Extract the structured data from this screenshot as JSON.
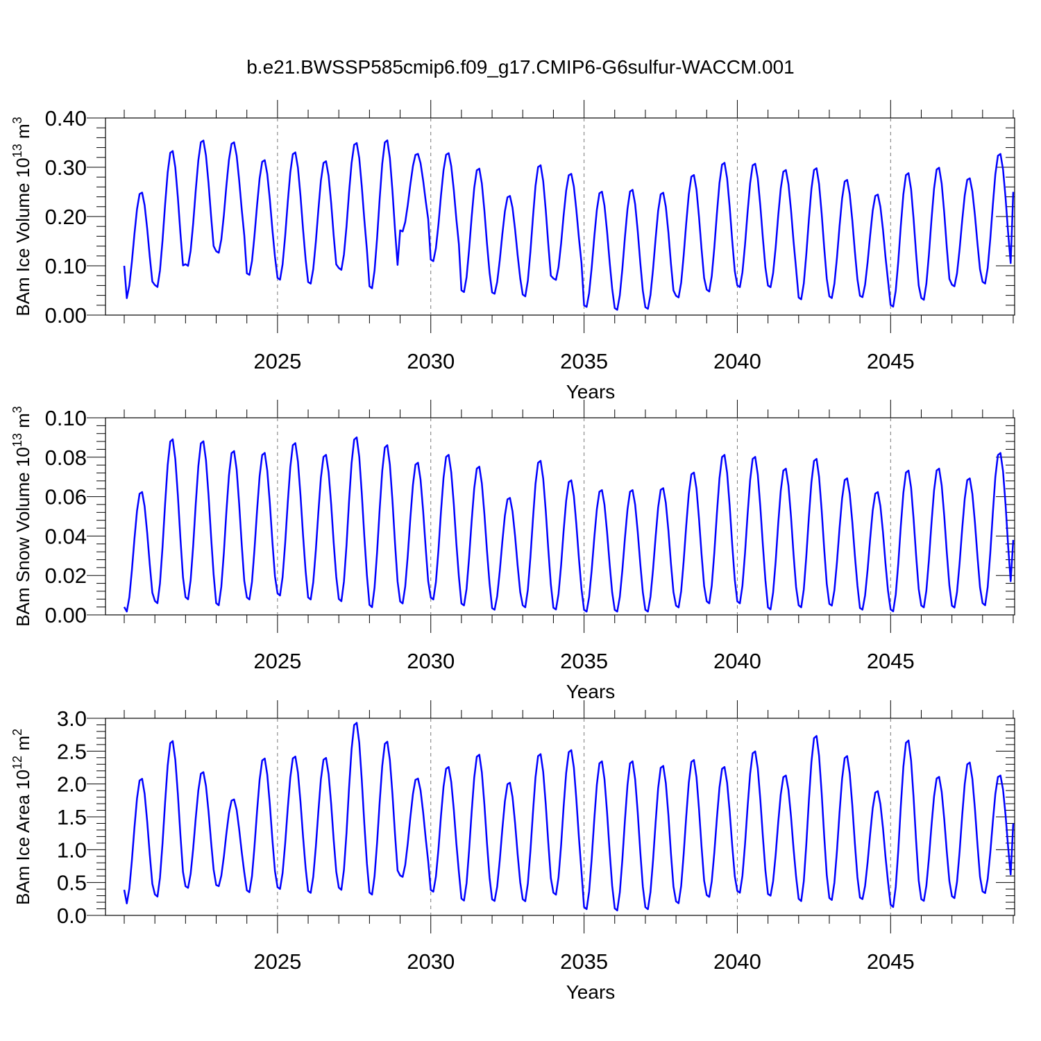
{
  "title": "b.e21.BWSSP585cmip6.f09_g17.CMIP6-G6sulfur-WACCM.001",
  "chart_data": [
    {
      "type": "line",
      "ylabel_main": "BAm Ice Volume 10",
      "ylabel_exp": "13",
      "ylabel_unit": " m",
      "ylabel_unit_exp": "3",
      "xlabel": "Years",
      "xlim": [
        2020.0,
        2049.0
      ],
      "ylim": [
        0.0,
        0.4
      ],
      "xticks": [
        2025,
        2030,
        2035,
        2040,
        2045
      ],
      "xtick_labels": [
        "2025",
        "2030",
        "2035",
        "2040",
        "2045"
      ],
      "yticks": [
        0.0,
        0.1,
        0.2,
        0.3,
        0.4
      ],
      "ytick_labels": [
        "0.00",
        "0.10",
        "0.20",
        "0.30",
        "0.40"
      ],
      "grid": "dashed vertical at x ticks",
      "color": "#0000ff",
      "series": [
        {
          "name": "BAm Ice Volume",
          "start": 2020.0,
          "step_months": 1,
          "annual_max": [
            0.251,
            0.336,
            0.357,
            0.353,
            0.317,
            0.333,
            0.315,
            0.352,
            0.358,
            0.329,
            0.331,
            0.3,
            0.244,
            0.307,
            0.289,
            0.253,
            0.257,
            0.251,
            0.287,
            0.312,
            0.31,
            0.297,
            0.301,
            0.277,
            0.247,
            0.291,
            0.302,
            0.28,
            0.33
          ],
          "annual_min": [
            0.032,
            0.054,
            0.097,
            0.124,
            0.079,
            0.069,
            0.061,
            0.089,
            0.051,
            0.168,
            0.107,
            0.044,
            0.041,
            0.035,
            0.069,
            0.014,
            0.008,
            0.01,
            0.033,
            0.045,
            0.054,
            0.054,
            0.029,
            0.032,
            0.034,
            0.014,
            0.028,
            0.056,
            0.061
          ],
          "first_value": 0.1,
          "last_value": 0.25
        }
      ]
    },
    {
      "type": "line",
      "ylabel_main": "BAm Snow Volume 10",
      "ylabel_exp": "13",
      "ylabel_unit": " m",
      "ylabel_unit_exp": "3",
      "xlabel": "Years",
      "xlim": [
        2020.0,
        2049.0
      ],
      "ylim": [
        0.0,
        0.1
      ],
      "xticks": [
        2025,
        2030,
        2035,
        2040,
        2045
      ],
      "xtick_labels": [
        "2025",
        "2030",
        "2035",
        "2040",
        "2045"
      ],
      "yticks": [
        0.0,
        0.02,
        0.04,
        0.06,
        0.08,
        0.1
      ],
      "ytick_labels": [
        "0.00",
        "0.02",
        "0.04",
        "0.06",
        "0.08",
        "0.10"
      ],
      "grid": "dashed vertical at x ticks",
      "color": "#0000ff",
      "series": [
        {
          "name": "BAm Snow Volume",
          "start": 2020.0,
          "step_months": 1,
          "annual_max": [
            0.063,
            0.09,
            0.089,
            0.084,
            0.083,
            0.088,
            0.082,
            0.091,
            0.087,
            0.078,
            0.082,
            0.076,
            0.06,
            0.079,
            0.069,
            0.064,
            0.064,
            0.065,
            0.073,
            0.082,
            0.081,
            0.075,
            0.08,
            0.07,
            0.063,
            0.074,
            0.075,
            0.07,
            0.083
          ],
          "annual_min": [
            0.001,
            0.005,
            0.007,
            0.004,
            0.007,
            0.009,
            0.007,
            0.006,
            0.003,
            0.005,
            0.007,
            0.004,
            0.002,
            0.003,
            0.002,
            0.001,
            0.001,
            0.001,
            0.003,
            0.005,
            0.005,
            0.002,
            0.003,
            0.004,
            0.002,
            0.001,
            0.003,
            0.003,
            0.004
          ],
          "first_value": 0.004,
          "last_value": 0.038
        }
      ]
    },
    {
      "type": "line",
      "ylabel_main": "BAm Ice Area 10",
      "ylabel_exp": "12",
      "ylabel_unit": " m",
      "ylabel_unit_exp": "2",
      "xlabel": "Years",
      "xlim": [
        2020.0,
        2049.0
      ],
      "ylim": [
        0.0,
        3.0
      ],
      "xticks": [
        2025,
        2030,
        2035,
        2040,
        2045
      ],
      "xtick_labels": [
        "2025",
        "2030",
        "2035",
        "2040",
        "2045"
      ],
      "yticks": [
        0.0,
        0.5,
        1.0,
        1.5,
        2.0,
        2.5,
        3.0
      ],
      "ytick_labels": [
        "0.0",
        "0.5",
        "1.0",
        "1.5",
        "2.0",
        "2.5",
        "3.0"
      ],
      "grid": "dashed vertical at x ticks",
      "color": "#0000ff",
      "series": [
        {
          "name": "BAm Ice Area",
          "start": 2020.0,
          "step_months": 1,
          "annual_max": [
            2.1,
            2.68,
            2.2,
            1.78,
            2.41,
            2.44,
            2.42,
            2.96,
            2.67,
            2.1,
            2.28,
            2.47,
            2.04,
            2.48,
            2.54,
            2.37,
            2.37,
            2.3,
            2.39,
            2.28,
            2.52,
            2.15,
            2.76,
            2.45,
            1.91,
            2.69,
            2.13,
            2.35,
            2.15
          ],
          "annual_min": [
            0.16,
            0.26,
            0.4,
            0.43,
            0.33,
            0.38,
            0.32,
            0.36,
            0.29,
            0.57,
            0.34,
            0.2,
            0.2,
            0.19,
            0.29,
            0.07,
            0.05,
            0.07,
            0.16,
            0.26,
            0.32,
            0.28,
            0.19,
            0.21,
            0.23,
            0.1,
            0.2,
            0.24,
            0.32
          ],
          "first_value": 0.39,
          "last_value": 1.4
        }
      ]
    }
  ]
}
